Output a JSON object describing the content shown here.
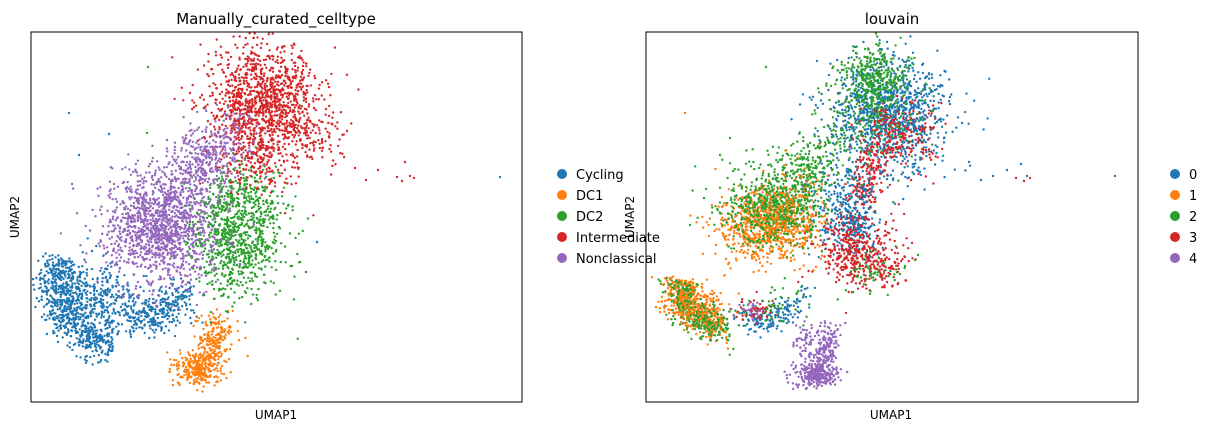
{
  "chart_data": [
    {
      "type": "scatter",
      "title": "Manually_curated_celltype",
      "xlabel": "UMAP1",
      "ylabel": "UMAP2",
      "xticks": false,
      "yticks": false,
      "grid": false,
      "legend_position": "right",
      "series": [
        {
          "name": "Cycling",
          "color": "#1f77b4"
        },
        {
          "name": "DC1",
          "color": "#ff7f0e"
        },
        {
          "name": "DC2",
          "color": "#2ca02c"
        },
        {
          "name": "Intermediate",
          "color": "#d62728"
        },
        {
          "name": "Nonclassical",
          "color": "#9467bd"
        }
      ]
    },
    {
      "type": "scatter",
      "title": "louvain",
      "xlabel": "UMAP1",
      "ylabel": "UMAP2",
      "xticks": false,
      "yticks": false,
      "grid": false,
      "legend_position": "right",
      "series": [
        {
          "name": "0",
          "color": "#1f77b4"
        },
        {
          "name": "1",
          "color": "#ff7f0e"
        },
        {
          "name": "2",
          "color": "#2ca02c"
        },
        {
          "name": "3",
          "color": "#d62728"
        },
        {
          "name": "4",
          "color": "#9467bd"
        }
      ]
    }
  ]
}
